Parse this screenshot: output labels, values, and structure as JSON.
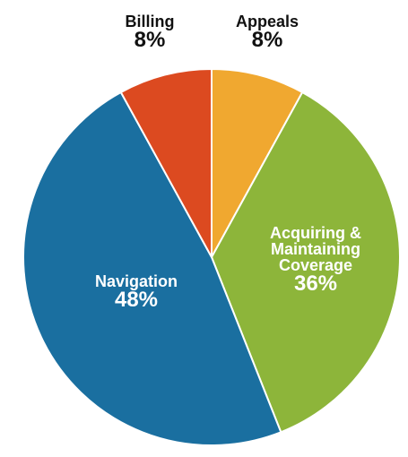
{
  "chart_data": {
    "type": "pie",
    "categories": [
      "Appeals",
      "Acquiring & Maintaining Coverage",
      "Navigation",
      "Billing"
    ],
    "values": [
      8,
      36,
      48,
      8
    ],
    "value_labels": [
      "8%",
      "36%",
      "48%",
      "8%"
    ],
    "colors": [
      "#f0a830",
      "#8db53a",
      "#1a6fa0",
      "#dc4a20"
    ]
  }
}
